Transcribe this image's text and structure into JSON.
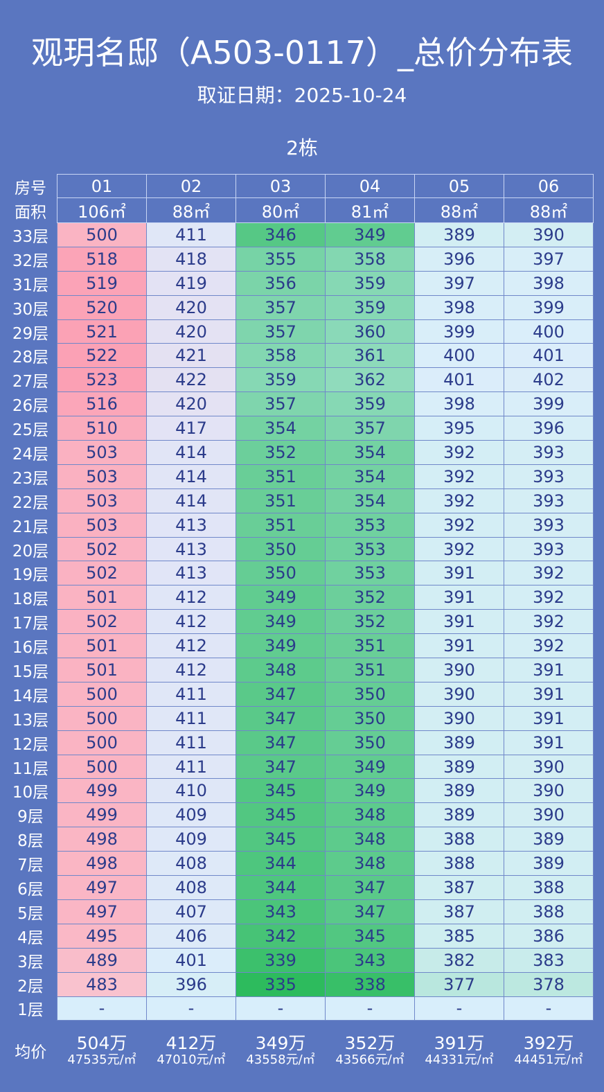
{
  "title": "观玥名邸（A503-0117）_总价分布表",
  "subtitle": "取证日期：2025-10-24",
  "building": "2栋",
  "header": {
    "room_label": "房号",
    "area_label": "面积",
    "rooms": [
      "01",
      "02",
      "03",
      "04",
      "05",
      "06"
    ],
    "areas": [
      "106㎡",
      "88㎡",
      "80㎡",
      "81㎡",
      "88㎡",
      "88㎡"
    ]
  },
  "floors": [
    {
      "label": "33层",
      "values": [
        "500",
        "411",
        "346",
        "349",
        "389",
        "390"
      ]
    },
    {
      "label": "32层",
      "values": [
        "518",
        "418",
        "355",
        "358",
        "396",
        "397"
      ]
    },
    {
      "label": "31层",
      "values": [
        "519",
        "419",
        "356",
        "359",
        "397",
        "398"
      ]
    },
    {
      "label": "30层",
      "values": [
        "520",
        "420",
        "357",
        "359",
        "398",
        "399"
      ]
    },
    {
      "label": "29层",
      "values": [
        "521",
        "420",
        "357",
        "360",
        "399",
        "400"
      ]
    },
    {
      "label": "28层",
      "values": [
        "522",
        "421",
        "358",
        "361",
        "400",
        "401"
      ]
    },
    {
      "label": "27层",
      "values": [
        "523",
        "422",
        "359",
        "362",
        "401",
        "402"
      ]
    },
    {
      "label": "26层",
      "values": [
        "516",
        "420",
        "357",
        "359",
        "398",
        "399"
      ]
    },
    {
      "label": "25层",
      "values": [
        "510",
        "417",
        "354",
        "357",
        "395",
        "396"
      ]
    },
    {
      "label": "24层",
      "values": [
        "503",
        "414",
        "352",
        "354",
        "392",
        "393"
      ]
    },
    {
      "label": "23层",
      "values": [
        "503",
        "414",
        "351",
        "354",
        "392",
        "393"
      ]
    },
    {
      "label": "22层",
      "values": [
        "503",
        "414",
        "351",
        "354",
        "392",
        "393"
      ]
    },
    {
      "label": "21层",
      "values": [
        "503",
        "413",
        "351",
        "353",
        "392",
        "393"
      ]
    },
    {
      "label": "20层",
      "values": [
        "502",
        "413",
        "350",
        "353",
        "392",
        "393"
      ]
    },
    {
      "label": "19层",
      "values": [
        "502",
        "413",
        "350",
        "353",
        "391",
        "392"
      ]
    },
    {
      "label": "18层",
      "values": [
        "501",
        "412",
        "349",
        "352",
        "391",
        "392"
      ]
    },
    {
      "label": "17层",
      "values": [
        "502",
        "412",
        "349",
        "352",
        "391",
        "392"
      ]
    },
    {
      "label": "16层",
      "values": [
        "501",
        "412",
        "349",
        "351",
        "391",
        "392"
      ]
    },
    {
      "label": "15层",
      "values": [
        "501",
        "412",
        "348",
        "351",
        "390",
        "391"
      ]
    },
    {
      "label": "14层",
      "values": [
        "500",
        "411",
        "347",
        "350",
        "390",
        "391"
      ]
    },
    {
      "label": "13层",
      "values": [
        "500",
        "411",
        "347",
        "350",
        "390",
        "391"
      ]
    },
    {
      "label": "12层",
      "values": [
        "500",
        "411",
        "347",
        "350",
        "389",
        "391"
      ]
    },
    {
      "label": "11层",
      "values": [
        "500",
        "411",
        "347",
        "349",
        "389",
        "390"
      ]
    },
    {
      "label": "10层",
      "values": [
        "499",
        "410",
        "345",
        "349",
        "389",
        "390"
      ]
    },
    {
      "label": "9层",
      "values": [
        "499",
        "409",
        "345",
        "348",
        "389",
        "390"
      ]
    },
    {
      "label": "8层",
      "values": [
        "498",
        "409",
        "345",
        "348",
        "388",
        "389"
      ]
    },
    {
      "label": "7层",
      "values": [
        "498",
        "408",
        "344",
        "348",
        "388",
        "389"
      ]
    },
    {
      "label": "6层",
      "values": [
        "497",
        "408",
        "344",
        "347",
        "387",
        "388"
      ]
    },
    {
      "label": "5层",
      "values": [
        "497",
        "407",
        "343",
        "347",
        "387",
        "388"
      ]
    },
    {
      "label": "4层",
      "values": [
        "495",
        "406",
        "342",
        "345",
        "385",
        "386"
      ]
    },
    {
      "label": "3层",
      "values": [
        "489",
        "401",
        "339",
        "343",
        "382",
        "383"
      ]
    },
    {
      "label": "2层",
      "values": [
        "483",
        "396",
        "335",
        "338",
        "377",
        "378"
      ]
    },
    {
      "label": "1层",
      "values": [
        "-",
        "-",
        "-",
        "-",
        "-",
        "-"
      ]
    }
  ],
  "average": {
    "label": "均价",
    "totals": [
      "504万",
      "412万",
      "349万",
      "352万",
      "391万",
      "392万"
    ],
    "unit_prices": [
      "47535元/㎡",
      "47010元/㎡",
      "43558元/㎡",
      "43566元/㎡",
      "44331元/㎡",
      "44451元/㎡"
    ]
  },
  "colors": {
    "background": "#5a76c0",
    "text": "#2b3b8a",
    "high": "#fba0b4",
    "mid": "#e2e4f6",
    "low": "#2dbb5d",
    "empty": "#d8eefb"
  }
}
